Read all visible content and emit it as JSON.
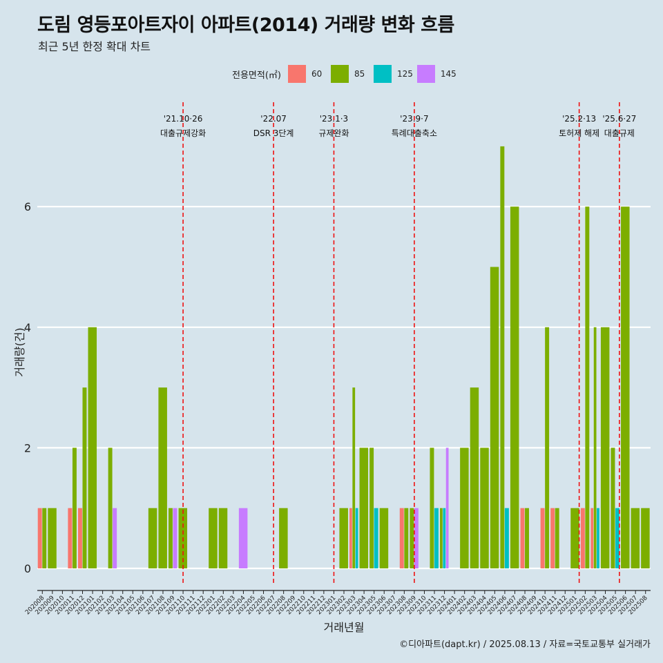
{
  "title": "도림 영등포아트자이 아파트(2014) 거래량 변화 흐름",
  "subtitle": "최근 5년 한정 확대 차트",
  "caption": "©디아파트(dapt.kr) / 2025.08.13 / 자료=국토교통부 실거래가",
  "legend": {
    "title": "전용면적(㎡)",
    "items": [
      {
        "label": "60",
        "color": "#f8766d"
      },
      {
        "label": "85",
        "color": "#7cae00"
      },
      {
        "label": "125",
        "color": "#00bfc4"
      },
      {
        "label": "145",
        "color": "#c77cff"
      }
    ]
  },
  "chart_data": {
    "type": "bar",
    "xlabel": "거래년월",
    "ylabel": "거래량(건)",
    "ylim": [
      0,
      7
    ],
    "yticks": [
      0,
      2,
      4,
      6
    ],
    "categories": [
      "202008",
      "202009",
      "202010",
      "202011",
      "202012",
      "202101",
      "202102",
      "202103",
      "202104",
      "202105",
      "202106",
      "202107",
      "202108",
      "202109",
      "202110",
      "202111",
      "202112",
      "202201",
      "202202",
      "202203",
      "202204",
      "202205",
      "202206",
      "202207",
      "202208",
      "202209",
      "202210",
      "202211",
      "202212",
      "202301",
      "202302",
      "202303",
      "202304",
      "202305",
      "202306",
      "202307",
      "202308",
      "202309",
      "202310",
      "202311",
      "202312",
      "202401",
      "202402",
      "202403",
      "202404",
      "202405",
      "202406",
      "202407",
      "202408",
      "202409",
      "202410",
      "202411",
      "202412",
      "202501",
      "202502",
      "202503",
      "202504",
      "202505",
      "202506",
      "202507",
      "202508"
    ],
    "series": [
      {
        "name": "60",
        "values": [
          1,
          0,
          0,
          1,
          1,
          0,
          0,
          0,
          0,
          0,
          0,
          0,
          0,
          0,
          0,
          0,
          0,
          0,
          0,
          0,
          0,
          0,
          0,
          0,
          0,
          0,
          0,
          0,
          0,
          0,
          0,
          1,
          0,
          0,
          0,
          0,
          1,
          0,
          0,
          0,
          0,
          0,
          0,
          0,
          0,
          0,
          0,
          0,
          1,
          0,
          1,
          1,
          0,
          0,
          1,
          1,
          0,
          0,
          0,
          0,
          0
        ]
      },
      {
        "name": "85",
        "values": [
          1,
          1,
          0,
          2,
          3,
          4,
          0,
          2,
          0,
          0,
          0,
          1,
          3,
          1,
          1,
          0,
          0,
          1,
          1,
          0,
          0,
          0,
          0,
          0,
          1,
          0,
          0,
          0,
          0,
          0,
          1,
          3,
          2,
          2,
          1,
          0,
          1,
          1,
          0,
          2,
          1,
          0,
          2,
          3,
          2,
          5,
          7,
          6,
          1,
          0,
          4,
          1,
          0,
          1,
          6,
          4,
          4,
          2,
          6,
          1,
          1
        ]
      },
      {
        "name": "125",
        "values": [
          0,
          0,
          0,
          0,
          0,
          0,
          0,
          0,
          0,
          0,
          0,
          0,
          0,
          0,
          0,
          0,
          0,
          0,
          0,
          0,
          0,
          0,
          0,
          0,
          0,
          0,
          0,
          0,
          0,
          0,
          0,
          1,
          0,
          1,
          0,
          0,
          0,
          0,
          0,
          1,
          1,
          0,
          0,
          0,
          0,
          0,
          1,
          0,
          0,
          0,
          0,
          0,
          0,
          0,
          0,
          1,
          0,
          1,
          0,
          0,
          0
        ]
      },
      {
        "name": "145",
        "values": [
          0,
          0,
          0,
          0,
          0,
          0,
          0,
          1,
          0,
          0,
          0,
          0,
          0,
          1,
          0,
          0,
          0,
          0,
          0,
          0,
          1,
          0,
          0,
          0,
          0,
          0,
          0,
          0,
          0,
          0,
          0,
          0,
          0,
          0,
          0,
          0,
          0,
          1,
          0,
          0,
          2,
          0,
          0,
          0,
          0,
          0,
          0,
          0,
          0,
          0,
          0,
          0,
          0,
          0,
          0,
          0,
          0,
          0,
          0,
          0,
          0
        ]
      }
    ],
    "events": [
      {
        "date": "'21.10·26",
        "label": "대출규제강화",
        "x": 14.0
      },
      {
        "date": "'22.07",
        "label": "DSR 3단계",
        "x": 23.0
      },
      {
        "date": "'23.1·3",
        "label": "규제완화",
        "x": 29.0
      },
      {
        "date": "'23.9·7",
        "label": "특례대출축소",
        "x": 37.0
      },
      {
        "date": "'25.2·13",
        "label": "토허제 해제",
        "x": 53.4
      },
      {
        "date": "'25.6·27",
        "label": "대출규제",
        "x": 57.4
      }
    ],
    "grid": true,
    "legend_position": "top"
  }
}
